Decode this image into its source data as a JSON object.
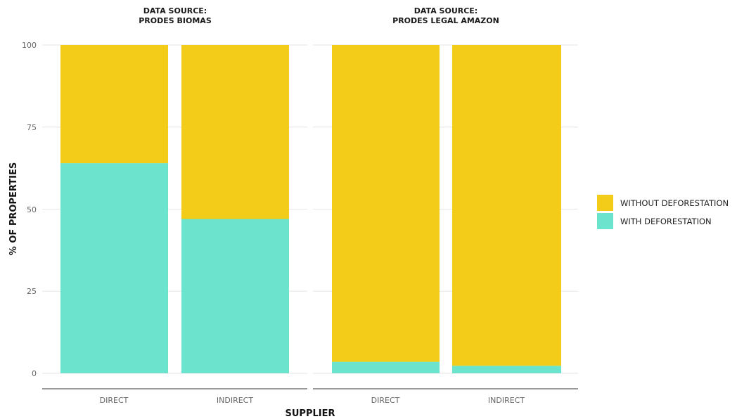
{
  "chart_data": {
    "type": "bar",
    "stacked": true,
    "percent_scale": true,
    "ylabel": "% OF PROPERTIES",
    "xlabel": "SUPPLIER",
    "ylim": [
      0,
      100
    ],
    "y_ticks": [
      "0",
      "25",
      "50",
      "75",
      "100"
    ],
    "grid": true,
    "legend_position": "right",
    "colors": {
      "WITHOUT DEFORESTATION": "#F2CC18",
      "WITH DEFORESTATION": "#6CE3CC"
    },
    "legend": [
      "WITHOUT DEFORESTATION",
      "WITH DEFORESTATION"
    ],
    "facets": [
      {
        "title_line1": "DATA SOURCE:",
        "title_line2": "PRODES BIOMAS",
        "categories": [
          "DIRECT",
          "INDIRECT"
        ],
        "series": [
          {
            "name": "WITH DEFORESTATION",
            "values": [
              64,
              47
            ]
          },
          {
            "name": "WITHOUT DEFORESTATION",
            "values": [
              36,
              53
            ]
          }
        ]
      },
      {
        "title_line1": "DATA SOURCE:",
        "title_line2": "PRODES LEGAL AMAZON",
        "categories": [
          "DIRECT",
          "INDIRECT"
        ],
        "series": [
          {
            "name": "WITH DEFORESTATION",
            "values": [
              3.5,
              2.3
            ]
          },
          {
            "name": "WITHOUT DEFORESTATION",
            "values": [
              96.5,
              97.7
            ]
          }
        ]
      }
    ]
  }
}
